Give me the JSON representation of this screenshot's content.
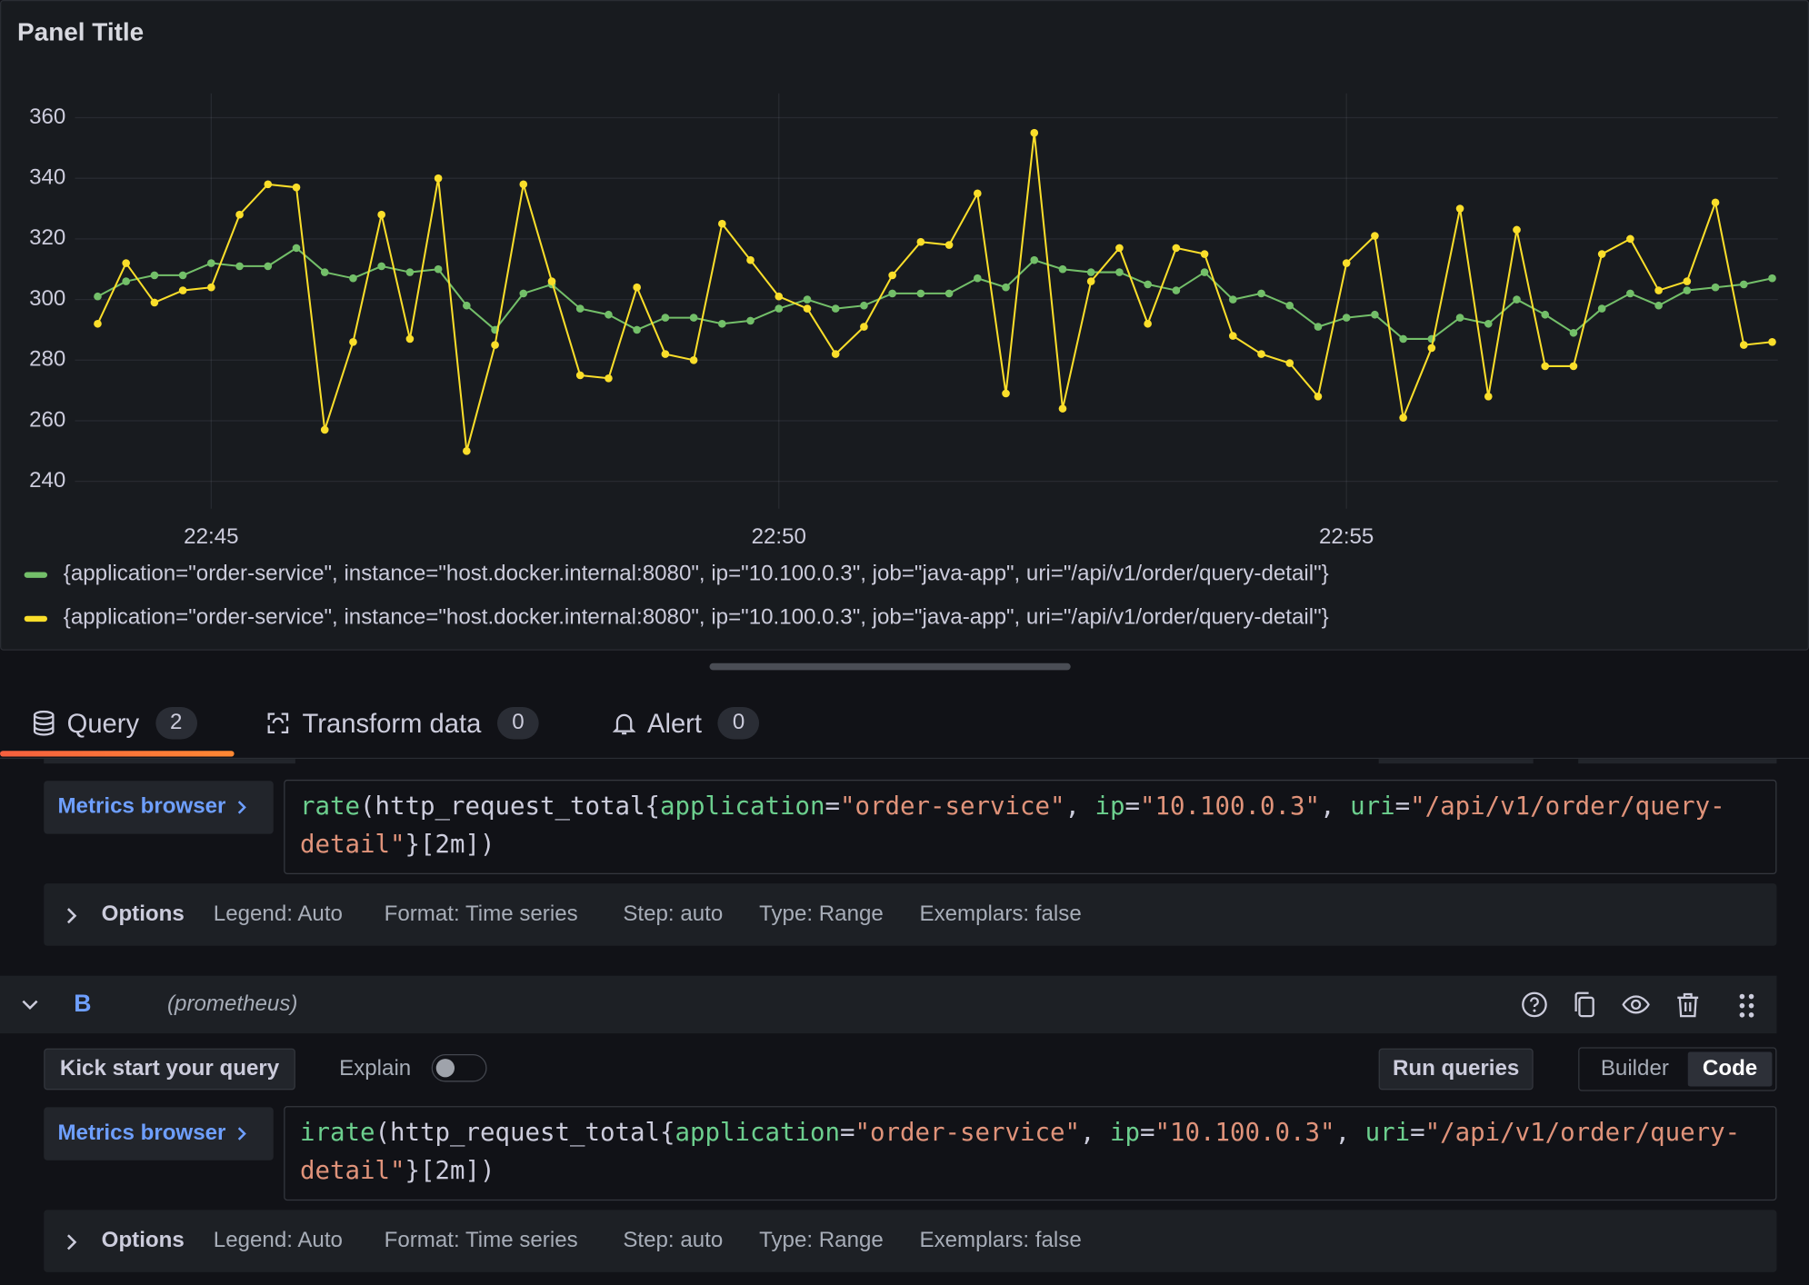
{
  "panel": {
    "title": "Panel Title"
  },
  "chart_data": {
    "type": "line",
    "x": [
      "22:44:00",
      "22:44:15",
      "22:44:30",
      "22:44:45",
      "22:45:00",
      "22:45:15",
      "22:45:30",
      "22:45:45",
      "22:46:00",
      "22:46:15",
      "22:46:30",
      "22:46:45",
      "22:47:00",
      "22:47:15",
      "22:47:30",
      "22:47:45",
      "22:48:00",
      "22:48:15",
      "22:48:30",
      "22:48:45",
      "22:49:00",
      "22:49:15",
      "22:49:30",
      "22:49:45",
      "22:50:00",
      "22:50:15",
      "22:50:30",
      "22:50:45",
      "22:51:00",
      "22:51:15",
      "22:51:30",
      "22:51:45",
      "22:52:00",
      "22:52:15",
      "22:52:30",
      "22:52:45",
      "22:53:00",
      "22:53:15",
      "22:53:30",
      "22:53:45",
      "22:54:00",
      "22:54:15",
      "22:54:30",
      "22:54:45",
      "22:55:00",
      "22:55:15",
      "22:55:30",
      "22:55:45",
      "22:56:00",
      "22:56:15",
      "22:56:30",
      "22:56:45",
      "22:57:00",
      "22:57:15",
      "22:57:30",
      "22:57:45",
      "22:58:00",
      "22:58:15",
      "22:58:30",
      "22:58:45"
    ],
    "series": [
      {
        "name": "{application=\"order-service\", instance=\"host.docker.internal:8080\", ip=\"10.100.0.3\", job=\"java-app\", uri=\"/api/v1/order/query-detail\"}",
        "color": "#73bf69",
        "values": [
          301,
          306,
          308,
          308,
          312,
          311,
          311,
          317,
          309,
          307,
          311,
          309,
          310,
          298,
          290,
          302,
          305,
          297,
          295,
          290,
          294,
          294,
          292,
          293,
          297,
          300,
          297,
          298,
          302,
          302,
          302,
          307,
          304,
          313,
          310,
          309,
          309,
          305,
          303,
          309,
          300,
          302,
          298,
          291,
          294,
          295,
          287,
          287,
          294,
          292,
          300,
          295,
          289,
          297,
          302,
          298,
          303,
          304,
          305,
          307
        ]
      },
      {
        "name": "{application=\"order-service\", instance=\"host.docker.internal:8080\", ip=\"10.100.0.3\", job=\"java-app\", uri=\"/api/v1/order/query-detail\"}",
        "color": "#fade2a",
        "values": [
          292,
          312,
          299,
          303,
          304,
          328,
          338,
          337,
          257,
          286,
          328,
          287,
          340,
          250,
          285,
          338,
          306,
          275,
          274,
          304,
          282,
          280,
          325,
          313,
          301,
          297,
          282,
          291,
          308,
          319,
          318,
          335,
          269,
          355,
          264,
          306,
          317,
          292,
          317,
          315,
          288,
          282,
          279,
          268,
          312,
          321,
          261,
          284,
          330,
          268,
          323,
          278,
          278,
          315,
          320,
          303,
          306,
          332,
          285,
          286
        ]
      }
    ],
    "xlim": [
      "22:43:48",
      "22:58:48"
    ],
    "xticks": [
      "22:45",
      "22:50",
      "22:55"
    ],
    "ylim": [
      231,
      368
    ],
    "yticks": [
      240,
      260,
      280,
      300,
      320,
      340,
      360
    ],
    "grid": true,
    "legend": "bottom"
  },
  "tabs": [
    {
      "label": "Query",
      "count": 2
    },
    {
      "label": "Transform data",
      "count": 0
    },
    {
      "label": "Alert",
      "count": 0
    }
  ],
  "queries": [
    {
      "metrics_browser": "Metrics browser",
      "expr": [
        {
          "text": "rate",
          "kind": "fn"
        },
        {
          "text": "(http_request_total{",
          "kind": "plain"
        },
        {
          "text": "application",
          "kind": "label"
        },
        {
          "text": "=",
          "kind": "plain"
        },
        {
          "text": "\"order-service\"",
          "kind": "string"
        },
        {
          "text": ", ",
          "kind": "plain"
        },
        {
          "text": "ip",
          "kind": "label"
        },
        {
          "text": "=",
          "kind": "plain"
        },
        {
          "text": "\"10.100.0.3\"",
          "kind": "string"
        },
        {
          "text": ", ",
          "kind": "plain"
        },
        {
          "text": "uri",
          "kind": "label"
        },
        {
          "text": "=",
          "kind": "plain"
        },
        {
          "text": "\"/api/v1/order/",
          "kind": "string"
        },
        {
          "text": "query-detail\"",
          "kind": "string"
        },
        {
          "text": "}[2m])",
          "kind": "plain"
        }
      ],
      "options": {
        "label": "Options",
        "items": [
          "Legend: Auto",
          "Format: Time series",
          "Step: auto",
          "Type: Range",
          "Exemplars: false"
        ]
      }
    },
    {
      "ref": "B",
      "datasource": "(prometheus)",
      "kick_start": "Kick start your query",
      "explain": "Explain",
      "run": "Run queries",
      "modes": [
        "Builder",
        "Code"
      ],
      "active_mode": 1,
      "metrics_browser": "Metrics browser",
      "expr": [
        {
          "text": "irate",
          "kind": "fn"
        },
        {
          "text": "(http_request_total{",
          "kind": "plain"
        },
        {
          "text": "application",
          "kind": "label"
        },
        {
          "text": "=",
          "kind": "plain"
        },
        {
          "text": "\"order-service\"",
          "kind": "string"
        },
        {
          "text": ", ",
          "kind": "plain"
        },
        {
          "text": "ip",
          "kind": "label"
        },
        {
          "text": "=",
          "kind": "plain"
        },
        {
          "text": "\"10.100.0.3\"",
          "kind": "string"
        },
        {
          "text": ", ",
          "kind": "plain"
        },
        {
          "text": "uri",
          "kind": "label"
        },
        {
          "text": "=",
          "kind": "plain"
        },
        {
          "text": "\"/api/v1/order/",
          "kind": "string"
        },
        {
          "text": "query-detail\"",
          "kind": "string"
        },
        {
          "text": "}[2m])",
          "kind": "plain"
        }
      ],
      "options": {
        "label": "Options",
        "items": [
          "Legend: Auto",
          "Format: Time series",
          "Step: auto",
          "Type: Range",
          "Exemplars: false"
        ]
      }
    }
  ]
}
